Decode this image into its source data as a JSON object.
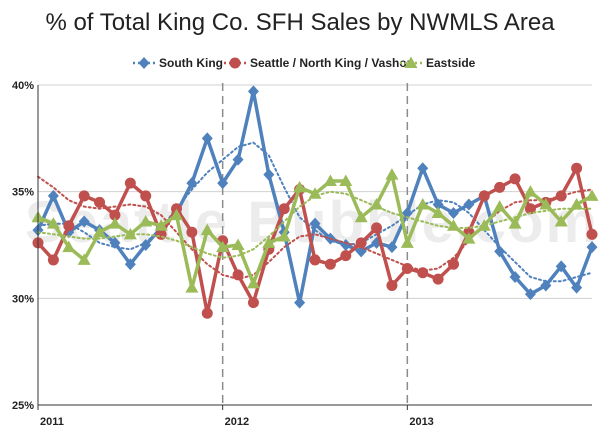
{
  "chart_data": {
    "type": "line",
    "title": "% of Total King Co. SFH Sales by NWMLS Area",
    "watermark": "Seattle Bubble.com",
    "ylim": [
      25,
      40
    ],
    "y_ticks": [
      "25%",
      "30%",
      "35%",
      "40%"
    ],
    "x_tick_labels": [
      {
        "label": "2011",
        "month_index": 0
      },
      {
        "label": "2012",
        "month_index": 12
      },
      {
        "label": "2013",
        "month_index": 24
      }
    ],
    "year_dividers": [
      12,
      24
    ],
    "x_count": 37,
    "grid": true,
    "legend_position": "top",
    "series": [
      {
        "name": "South King",
        "color": "#4f81bd",
        "marker": "diamond",
        "values": [
          33.2,
          34.8,
          33.1,
          33.6,
          33.2,
          32.6,
          31.6,
          32.5,
          33.3,
          34.0,
          35.4,
          37.5,
          35.4,
          36.5,
          39.7,
          35.8,
          33.1,
          29.8,
          33.5,
          32.8,
          32.5,
          32.2,
          32.6,
          32.4,
          34.0,
          36.1,
          34.4,
          34.0,
          34.4,
          34.8,
          32.2,
          31.0,
          30.2,
          30.6,
          31.5,
          30.5,
          32.4
        ],
        "trend": [
          33.4,
          33.5,
          33.5,
          33.1,
          32.6,
          32.4,
          32.3,
          32.6,
          33.3,
          34.2,
          35.1,
          35.9,
          36.5,
          37.1,
          37.3,
          36.7,
          35.2,
          33.8,
          33.2,
          32.7,
          32.5,
          32.6,
          33.0,
          33.4,
          33.9,
          34.4,
          34.6,
          34.5,
          34.0,
          33.2,
          32.4,
          31.7,
          31.0,
          30.8,
          30.8,
          31.0,
          31.2
        ]
      },
      {
        "name": "Seattle / North King / Vashon",
        "color": "#c0504d",
        "marker": "circle",
        "values": [
          32.6,
          31.8,
          33.4,
          34.8,
          34.5,
          33.9,
          35.4,
          34.8,
          33.0,
          34.2,
          33.1,
          29.3,
          32.7,
          31.1,
          29.8,
          32.3,
          34.2,
          35.1,
          31.8,
          31.6,
          32.0,
          32.6,
          33.3,
          30.6,
          31.4,
          31.2,
          30.9,
          31.6,
          33.1,
          34.8,
          35.2,
          35.6,
          34.2,
          34.5,
          34.8,
          36.1,
          33.0
        ],
        "trend": [
          35.7,
          35.2,
          34.6,
          34.3,
          34.2,
          34.3,
          34.4,
          34.3,
          33.9,
          33.1,
          32.3,
          31.6,
          31.1,
          30.9,
          31.1,
          31.7,
          32.4,
          32.9,
          33.0,
          32.8,
          32.6,
          32.4,
          32.1,
          31.8,
          31.5,
          31.3,
          31.4,
          31.9,
          32.7,
          33.5,
          34.1,
          34.5,
          34.6,
          34.6,
          34.8,
          35.0,
          35.1
        ]
      },
      {
        "name": "Eastside",
        "color": "#9bbb59",
        "marker": "triangle",
        "values": [
          33.8,
          33.5,
          32.4,
          31.8,
          33.1,
          33.5,
          33.0,
          33.6,
          33.4,
          33.9,
          30.5,
          33.2,
          32.4,
          32.5,
          30.7,
          32.6,
          32.9,
          35.2,
          34.9,
          35.5,
          35.5,
          33.8,
          34.4,
          35.8,
          32.6,
          34.4,
          34.0,
          33.4,
          32.8,
          33.4,
          34.3,
          33.5,
          35.0,
          34.4,
          33.6,
          34.4,
          34.8
        ],
        "trend": [
          33.1,
          33.0,
          32.9,
          32.8,
          32.8,
          32.9,
          33.0,
          33.0,
          32.9,
          32.7,
          32.4,
          32.1,
          31.9,
          32.0,
          32.3,
          32.9,
          33.6,
          34.3,
          34.8,
          35.0,
          34.9,
          34.6,
          34.3,
          34.0,
          33.8,
          33.6,
          33.4,
          33.3,
          33.3,
          33.4,
          33.6,
          33.8,
          34.0,
          34.1,
          34.2,
          34.2,
          34.2
        ]
      }
    ]
  }
}
